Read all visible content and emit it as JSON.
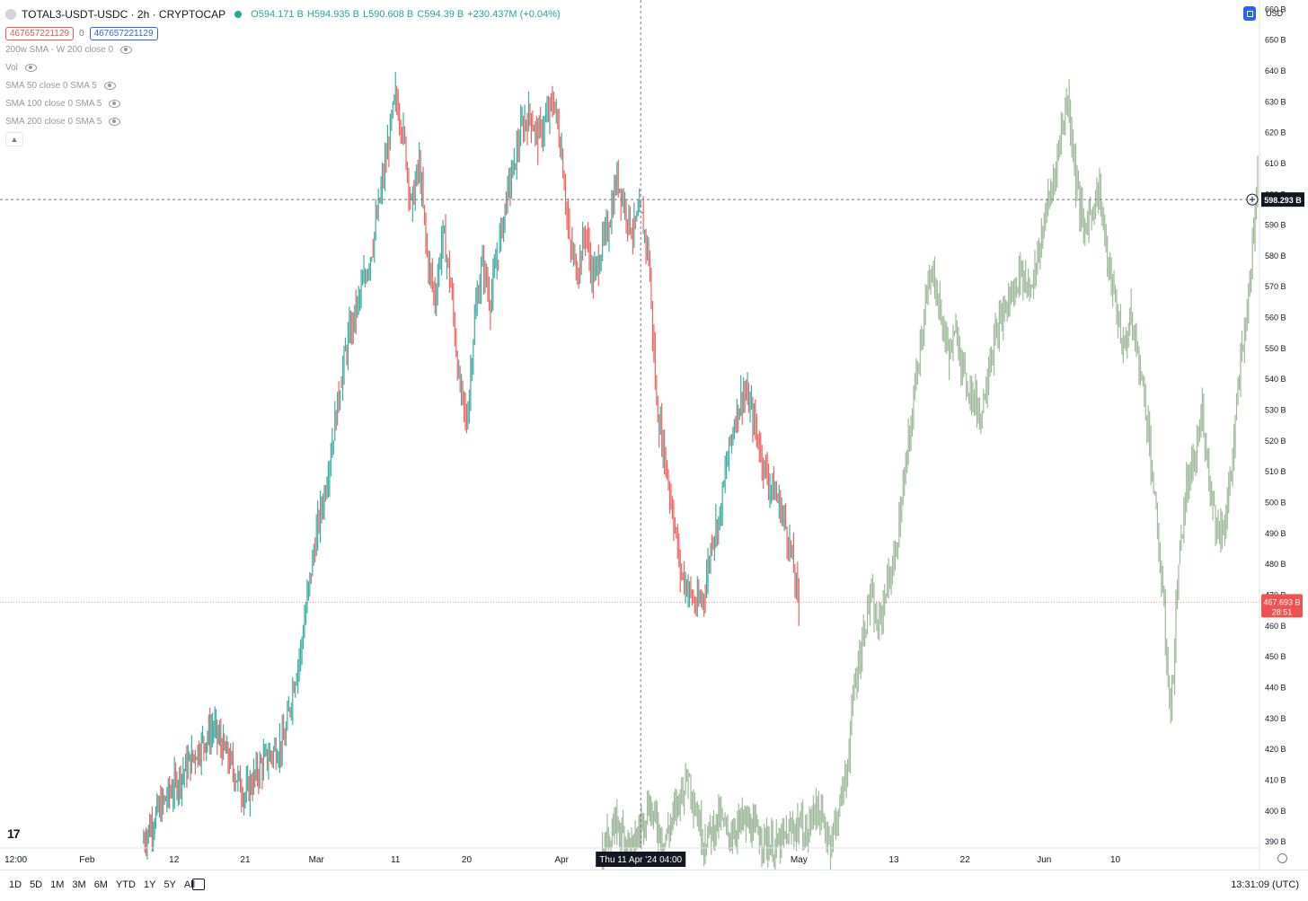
{
  "legend": {
    "symbol": "TOTAL3-USDT-USDC · 2h · CRYPTOCAP",
    "ohlc": [
      "O594.171 B",
      "H594.935 B",
      "L590.608 B",
      "C594.39 B",
      "+230.437M (+0.04%)"
    ],
    "inputs": [
      "467657221129",
      "0",
      "467657221129"
    ],
    "indicators": [
      "200w SMA - W 200 close 0",
      "Vol",
      "SMA 50 close 0 SMA 5",
      "SMA 100 close 0 SMA 5",
      "SMA 200 close 0 SMA 5"
    ]
  },
  "price_scale": {
    "unit": "USD"
  },
  "time_axis": {
    "labels": [
      {
        "text": "12:00",
        "date": "2024-01-23"
      },
      {
        "text": "Feb",
        "date": "2024-02-01"
      },
      {
        "text": "12",
        "date": "2024-02-12"
      },
      {
        "text": "21",
        "date": "2024-02-21"
      },
      {
        "text": "Mar",
        "date": "2024-03-01"
      },
      {
        "text": "11",
        "date": "2024-03-11"
      },
      {
        "text": "20",
        "date": "2024-03-20"
      },
      {
        "text": "Apr",
        "date": "2024-04-01"
      },
      {
        "text": "May",
        "date": "2024-05-01"
      },
      {
        "text": "13",
        "date": "2024-05-13"
      },
      {
        "text": "22",
        "date": "2024-05-22"
      },
      {
        "text": "Jun",
        "date": "2024-06-01"
      },
      {
        "text": "10",
        "date": "2024-06-10"
      }
    ]
  },
  "crosshair": {
    "date_label": "Thu 11 Apr '24  04:00",
    "date": "2024-04-11",
    "price": 598.293,
    "price_label": "598.293 B"
  },
  "last_price": {
    "value": 467.693,
    "label": "467.693 B",
    "countdown": "28:51"
  },
  "range_buttons": [
    "1D",
    "5D",
    "1M",
    "3M",
    "6M",
    "YTD",
    "1Y",
    "5Y",
    "All"
  ],
  "clock": "13:31:09 (UTC)",
  "colors": {
    "up": "#26a69a",
    "down": "#ef5350",
    "projection": "#7fa37a",
    "accent": "#2962ff"
  },
  "chart_data": {
    "type": "line",
    "ylabel": "USD",
    "ylim": [
      388,
      663
    ],
    "y_ticks": [
      390,
      400,
      410,
      420,
      430,
      440,
      450,
      460,
      470,
      480,
      490,
      500,
      510,
      520,
      530,
      540,
      550,
      560,
      570,
      580,
      590,
      600,
      610,
      620,
      630,
      640,
      650,
      660
    ],
    "y_tick_suffix": " B",
    "xlim": [
      "2024-01-21",
      "2024-06-28"
    ],
    "series": [
      {
        "role": "price",
        "points": [
          [
            "2024-02-08",
            390
          ],
          [
            "2024-02-10",
            400
          ],
          [
            "2024-02-13",
            412
          ],
          [
            "2024-02-15",
            420
          ],
          [
            "2024-02-17",
            427
          ],
          [
            "2024-02-19",
            416
          ],
          [
            "2024-02-21",
            405
          ],
          [
            "2024-02-23",
            415
          ],
          [
            "2024-02-26",
            423
          ],
          [
            "2024-02-27",
            440
          ],
          [
            "2024-02-28",
            452
          ],
          [
            "2024-02-29",
            472
          ],
          [
            "2024-03-01",
            490
          ],
          [
            "2024-03-02",
            503
          ],
          [
            "2024-03-03",
            520
          ],
          [
            "2024-03-04",
            538
          ],
          [
            "2024-03-05",
            553
          ],
          [
            "2024-03-06",
            562
          ],
          [
            "2024-03-07",
            572
          ],
          [
            "2024-03-08",
            582
          ],
          [
            "2024-03-09",
            598
          ],
          [
            "2024-03-10",
            615
          ],
          [
            "2024-03-11",
            632
          ],
          [
            "2024-03-12",
            620
          ],
          [
            "2024-03-13",
            596
          ],
          [
            "2024-03-14",
            610
          ],
          [
            "2024-03-15",
            580
          ],
          [
            "2024-03-16",
            566
          ],
          [
            "2024-03-17",
            588
          ],
          [
            "2024-03-18",
            570
          ],
          [
            "2024-03-19",
            540
          ],
          [
            "2024-03-20",
            525
          ],
          [
            "2024-03-21",
            560
          ],
          [
            "2024-03-22",
            578
          ],
          [
            "2024-03-23",
            565
          ],
          [
            "2024-03-24",
            582
          ],
          [
            "2024-03-25",
            598
          ],
          [
            "2024-03-26",
            610
          ],
          [
            "2024-03-27",
            622
          ],
          [
            "2024-03-28",
            626
          ],
          [
            "2024-03-29",
            618
          ],
          [
            "2024-03-30",
            624
          ],
          [
            "2024-03-31",
            630
          ],
          [
            "2024-04-01",
            614
          ],
          [
            "2024-04-02",
            584
          ],
          [
            "2024-04-03",
            575
          ],
          [
            "2024-04-04",
            588
          ],
          [
            "2024-04-05",
            572
          ],
          [
            "2024-04-06",
            582
          ],
          [
            "2024-04-07",
            590
          ],
          [
            "2024-04-08",
            606
          ],
          [
            "2024-04-09",
            596
          ],
          [
            "2024-04-10",
            588
          ],
          [
            "2024-04-11",
            594
          ],
          [
            "2024-04-12",
            580
          ],
          [
            "2024-04-13",
            532
          ],
          [
            "2024-04-14",
            515
          ],
          [
            "2024-04-15",
            498
          ],
          [
            "2024-04-16",
            478
          ],
          [
            "2024-04-17",
            472
          ],
          [
            "2024-04-18",
            466
          ],
          [
            "2024-04-19",
            470
          ],
          [
            "2024-04-20",
            488
          ],
          [
            "2024-04-21",
            496
          ],
          [
            "2024-04-22",
            515
          ],
          [
            "2024-04-23",
            528
          ],
          [
            "2024-04-24",
            536
          ],
          [
            "2024-04-25",
            530
          ],
          [
            "2024-04-26",
            518
          ],
          [
            "2024-04-27",
            508
          ],
          [
            "2024-04-28",
            503
          ],
          [
            "2024-04-29",
            496
          ],
          [
            "2024-04-30",
            484
          ],
          [
            "2024-05-01",
            466
          ]
        ]
      },
      {
        "role": "projection",
        "points": [
          [
            "2024-04-06",
            388
          ],
          [
            "2024-04-08",
            395
          ],
          [
            "2024-04-10",
            388
          ],
          [
            "2024-04-12",
            402
          ],
          [
            "2024-04-14",
            390
          ],
          [
            "2024-04-16",
            405
          ],
          [
            "2024-04-17",
            412
          ],
          [
            "2024-04-18",
            400
          ],
          [
            "2024-04-19",
            390
          ],
          [
            "2024-04-21",
            398
          ],
          [
            "2024-04-22",
            392
          ],
          [
            "2024-04-24",
            397
          ],
          [
            "2024-04-26",
            392
          ],
          [
            "2024-04-28",
            388
          ],
          [
            "2024-05-01",
            396
          ],
          [
            "2024-05-02",
            392
          ],
          [
            "2024-05-03",
            402
          ],
          [
            "2024-05-04",
            396
          ],
          [
            "2024-05-05",
            390
          ],
          [
            "2024-05-06",
            400
          ],
          [
            "2024-05-07",
            412
          ],
          [
            "2024-05-08",
            440
          ],
          [
            "2024-05-09",
            455
          ],
          [
            "2024-05-10",
            470
          ],
          [
            "2024-05-11",
            458
          ],
          [
            "2024-05-12",
            472
          ],
          [
            "2024-05-13",
            480
          ],
          [
            "2024-05-14",
            500
          ],
          [
            "2024-05-15",
            522
          ],
          [
            "2024-05-16",
            545
          ],
          [
            "2024-05-17",
            565
          ],
          [
            "2024-05-18",
            575
          ],
          [
            "2024-05-19",
            560
          ],
          [
            "2024-05-20",
            548
          ],
          [
            "2024-05-21",
            555
          ],
          [
            "2024-05-22",
            540
          ],
          [
            "2024-05-23",
            535
          ],
          [
            "2024-05-24",
            528
          ],
          [
            "2024-05-25",
            545
          ],
          [
            "2024-05-26",
            555
          ],
          [
            "2024-05-27",
            562
          ],
          [
            "2024-05-28",
            568
          ],
          [
            "2024-05-29",
            575
          ],
          [
            "2024-05-30",
            570
          ],
          [
            "2024-05-31",
            575
          ],
          [
            "2024-06-01",
            592
          ],
          [
            "2024-06-02",
            602
          ],
          [
            "2024-06-03",
            618
          ],
          [
            "2024-06-04",
            632
          ],
          [
            "2024-06-05",
            605
          ],
          [
            "2024-06-06",
            588
          ],
          [
            "2024-06-07",
            595
          ],
          [
            "2024-06-08",
            602
          ],
          [
            "2024-06-09",
            578
          ],
          [
            "2024-06-10",
            565
          ],
          [
            "2024-06-11",
            550
          ],
          [
            "2024-06-12",
            560
          ],
          [
            "2024-06-13",
            545
          ],
          [
            "2024-06-14",
            528
          ],
          [
            "2024-06-15",
            500
          ],
          [
            "2024-06-16",
            470
          ],
          [
            "2024-06-17",
            430
          ],
          [
            "2024-06-18",
            480
          ],
          [
            "2024-06-19",
            505
          ],
          [
            "2024-06-20",
            512
          ],
          [
            "2024-06-21",
            530
          ],
          [
            "2024-06-22",
            505
          ],
          [
            "2024-06-23",
            490
          ],
          [
            "2024-06-24",
            495
          ],
          [
            "2024-06-25",
            520
          ],
          [
            "2024-06-26",
            550
          ],
          [
            "2024-06-27",
            570
          ],
          [
            "2024-06-28",
            610
          ]
        ]
      }
    ]
  }
}
